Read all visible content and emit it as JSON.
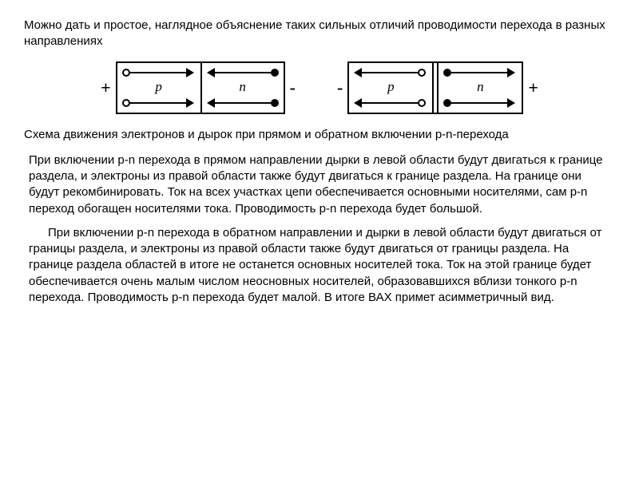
{
  "intro": "Можно дать и простое, наглядное объяснение таких сильных отличий проводимости перехода в разных направлениях",
  "diagram": {
    "forward": {
      "left_sign": "+",
      "right_sign": "-",
      "p_label": "p",
      "n_label": "n"
    },
    "reverse": {
      "left_sign": "-",
      "right_sign": "+",
      "p_label": "p",
      "n_label": "n"
    },
    "colors": {
      "stroke": "#000000",
      "hole_fill": "#ffffff",
      "electron_fill": "#000000",
      "background": "#ffffff"
    }
  },
  "caption": "Схема движения электронов и дырок при прямом и обратном включении p-n-перехода",
  "para_forward": "При включении p-n перехода в прямом направлении дырки в левой области будут двигаться к границе раздела, и электроны из правой области также будут двигаться к границе раздела. На границе они будут рекомбинировать. Ток на всех участках цепи обеспечивается основными носителями, сам p-n переход обогащен носителями тока. Проводимость p-n перехода будет большой.",
  "para_reverse": "При включении p-n перехода в обратном направлении и дырки в левой области будут двигаться от границы раздела, и электроны из правой области также будут двигаться от границы раздела. На границе раздела областей в итоге не останется основных носителей тока. Ток на этой границе будет обеспечивается очень малым числом неосновных носителей, образовавшихся вблизи тонкого p-n перехода. Проводимость p-n перехода будет малой. В итоге ВАХ примет асимметричный вид."
}
